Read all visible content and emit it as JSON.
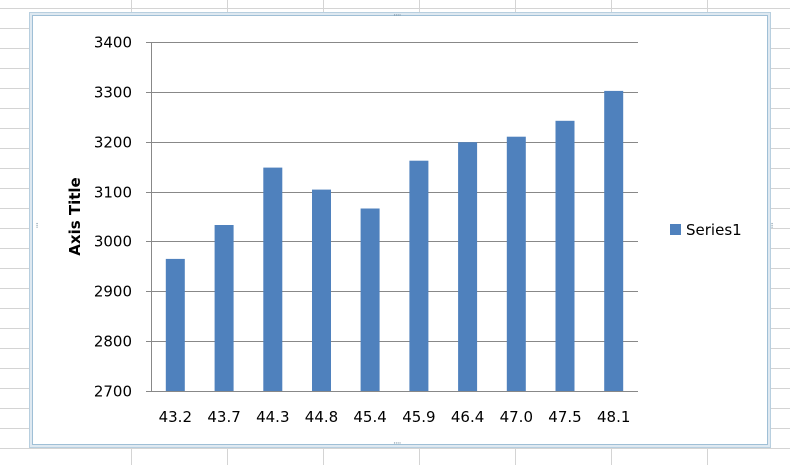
{
  "chart_data": {
    "type": "bar",
    "categories": [
      "43.2",
      "43.7",
      "44.3",
      "44.8",
      "45.4",
      "45.9",
      "46.4",
      "47.0",
      "47.5",
      "48.1"
    ],
    "series": [
      {
        "name": "Series1",
        "values": [
          2965,
          3033,
          3148,
          3104,
          3066,
          3162,
          3199,
          3210,
          3242,
          3302
        ]
      }
    ],
    "title": "",
    "xlabel": "",
    "ylabel": "Axis Title",
    "ylim": [
      2700,
      3400
    ],
    "yticks": [
      "2700",
      "2800",
      "2900",
      "3000",
      "3100",
      "3200",
      "3300",
      "3400"
    ],
    "grid": true,
    "legend_position": "right",
    "colors": {
      "series": "#4f81bd",
      "gridline": "#888888",
      "frame": "#9fbfd6"
    }
  }
}
